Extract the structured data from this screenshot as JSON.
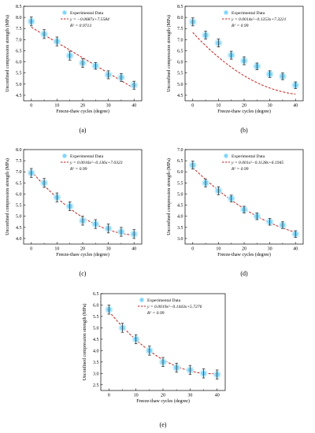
{
  "chart_data": [
    {
      "id": "a",
      "type": "scatter",
      "panel_label": "(a)",
      "xlabel": "Freeze-thaw cycles (degree)",
      "ylabel": "Unconfined compression strength (MPa)",
      "xlim": [
        -3,
        43
      ],
      "ylim": [
        4.25,
        8.5
      ],
      "xticks": [
        0,
        10,
        20,
        30,
        40
      ],
      "yticks": [
        4.5,
        5.0,
        5.5,
        6.0,
        6.5,
        7.0,
        7.5,
        8.0,
        8.5
      ],
      "ytick_labels": [
        "4.5",
        "5.0",
        "5.5",
        "6.0",
        "6.5",
        "7.0",
        "7.5",
        "8.0",
        "8.5"
      ],
      "legend": {
        "marker_label": "Experimental Data",
        "fit_label": "y = −0.0687x+7.5584",
        "r2_label": "R² = 0.9713"
      },
      "fit": [
        0,
        -0.0687,
        7.5584
      ],
      "x": [
        0,
        5,
        10,
        15,
        20,
        25,
        30,
        35,
        40
      ],
      "y": [
        7.82,
        7.25,
        6.92,
        6.28,
        5.95,
        5.82,
        5.42,
        5.3,
        4.95
      ],
      "err": [
        0.2,
        0.2,
        0.2,
        0.2,
        0.2,
        0.15,
        0.18,
        0.18,
        0.18
      ]
    },
    {
      "id": "b",
      "type": "scatter",
      "panel_label": "(b)",
      "xlabel": "Freeze-thaw cycles (degree)",
      "ylabel": "Unconfined compression strength (MPa)",
      "xlim": [
        -3,
        43
      ],
      "ylim": [
        4.25,
        8.5
      ],
      "xticks": [
        0,
        10,
        20,
        30,
        40
      ],
      "yticks": [
        4.5,
        5.0,
        5.5,
        6.0,
        6.5,
        7.0,
        7.5,
        8.0,
        8.5
      ],
      "ytick_labels": [
        "4.5",
        "5.0",
        "5.5",
        "6.0",
        "6.5",
        "7.0",
        "7.5",
        "8.0",
        "8.5"
      ],
      "legend": {
        "marker_label": "Experimental Data",
        "fit_label": "y = 0.0014x²−0.1253x+7.3221",
        "r2_label": "R² = 0.99"
      },
      "fit": [
        0.0014,
        -0.1253,
        7.3221
      ],
      "x": [
        0,
        5,
        10,
        15,
        20,
        25,
        30,
        35,
        40
      ],
      "y": [
        7.8,
        7.2,
        6.85,
        6.3,
        6.05,
        5.8,
        5.45,
        5.35,
        4.95
      ],
      "err": [
        0.18,
        0.18,
        0.18,
        0.18,
        0.18,
        0.15,
        0.15,
        0.15,
        0.15
      ]
    },
    {
      "id": "c",
      "type": "scatter",
      "panel_label": "(c)",
      "xlabel": "Freeze-thaw cycles (degree)",
      "ylabel": "Unconfined compression strength (MPa)",
      "xlim": [
        -3,
        43
      ],
      "ylim": [
        3.75,
        8.0
      ],
      "xticks": [
        0,
        10,
        20,
        30,
        40
      ],
      "yticks": [
        4.0,
        4.5,
        5.0,
        5.5,
        6.0,
        6.5,
        7.0,
        7.5,
        8.0
      ],
      "ytick_labels": [
        "4.0",
        "4.5",
        "5.0",
        "5.5",
        "6.0",
        "6.5",
        "7.0",
        "7.5",
        "8.0"
      ],
      "legend": {
        "marker_label": "Experimental Data",
        "fit_label": "y = 0.0016x²−0.136x+7.0323",
        "r2_label": "R² = 0.99"
      },
      "fit": [
        0.0016,
        -0.136,
        7.0323
      ],
      "x": [
        0,
        5,
        10,
        15,
        20,
        25,
        30,
        35,
        40
      ],
      "y": [
        6.95,
        6.5,
        5.85,
        5.45,
        4.8,
        4.65,
        4.45,
        4.3,
        4.2
      ],
      "err": [
        0.2,
        0.2,
        0.2,
        0.2,
        0.2,
        0.2,
        0.2,
        0.2,
        0.2
      ]
    },
    {
      "id": "d",
      "type": "scatter",
      "panel_label": "(d)",
      "xlabel": "Freeze-thaw cycles (degree)",
      "ylabel": "Unconfined compression strength (MPa)",
      "xlim": [
        -3,
        43
      ],
      "ylim": [
        2.75,
        7.0
      ],
      "xticks": [
        0,
        10,
        20,
        30,
        40
      ],
      "yticks": [
        3.0,
        3.5,
        4.0,
        4.5,
        5.0,
        5.5,
        6.0,
        6.5,
        7.0
      ],
      "ytick_labels": [
        "3.0",
        "3.5",
        "4.0",
        "4.5",
        "5.0",
        "5.5",
        "6.0",
        "6.5",
        "7.0"
      ],
      "legend": {
        "marker_label": "Experimental Data",
        "fit_label": "y = 0.001x²−0.1128x+6.1945",
        "r2_label": "R² = 0.99"
      },
      "fit": [
        0.001,
        -0.1128,
        6.1945
      ],
      "x": [
        0,
        5,
        10,
        15,
        20,
        25,
        30,
        35,
        40
      ],
      "y": [
        6.3,
        5.5,
        5.15,
        4.8,
        4.3,
        4.0,
        3.75,
        3.6,
        3.2
      ],
      "err": [
        0.18,
        0.18,
        0.18,
        0.15,
        0.15,
        0.15,
        0.15,
        0.15,
        0.15
      ]
    },
    {
      "id": "e",
      "type": "scatter",
      "panel_label": "(e)",
      "xlabel": "Freeze-thaw cycles (degree)",
      "ylabel": "Unconfined compression strength (MPa)",
      "xlim": [
        -3,
        43
      ],
      "ylim": [
        2.25,
        6.5
      ],
      "xticks": [
        0,
        10,
        20,
        30,
        40
      ],
      "yticks": [
        2.5,
        3.0,
        3.5,
        4.0,
        4.5,
        5.0,
        5.5,
        6.0,
        6.5
      ],
      "ytick_labels": [
        "2.5",
        "3.0",
        "3.5",
        "4.0",
        "4.5",
        "5.0",
        "5.5",
        "6.0",
        "6.5"
      ],
      "legend": {
        "marker_label": "Experimental Data",
        "fit_label": "y = 0.0019x²−0.1443x+5.7276",
        "r2_label": "R² = 0.99"
      },
      "fit": [
        0.0019,
        -0.1443,
        5.7276
      ],
      "x": [
        0,
        5,
        10,
        15,
        20,
        25,
        30,
        35,
        40
      ],
      "y": [
        5.8,
        5.0,
        4.5,
        4.0,
        3.5,
        3.25,
        3.15,
        3.0,
        2.95
      ],
      "err": [
        0.2,
        0.2,
        0.2,
        0.2,
        0.2,
        0.2,
        0.2,
        0.2,
        0.2
      ]
    }
  ],
  "colors": {
    "marker_fill": "#7fd4f7",
    "marker_glow": "#c9eefc",
    "fit_line": "#c0221f",
    "error_bar": "#222222",
    "axis": "#000000"
  }
}
